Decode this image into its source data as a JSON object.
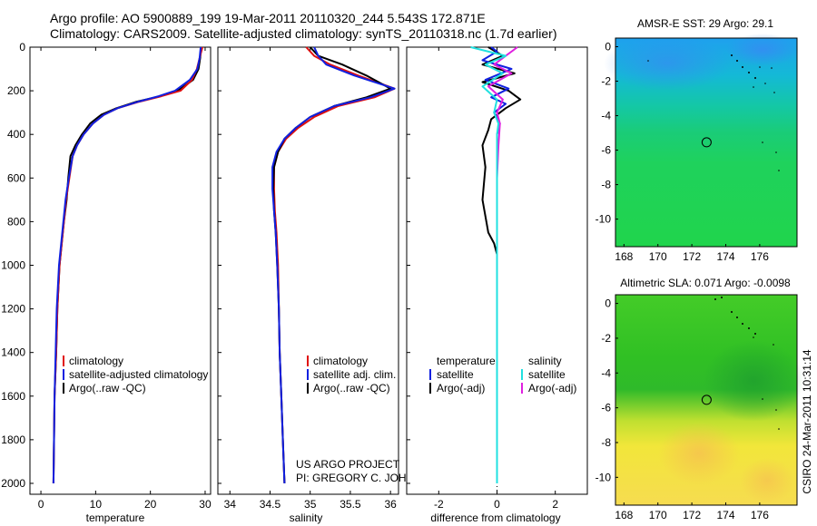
{
  "header": {
    "line1": "Argo profile: AO 5900889_199 19-Mar-2011 20110320_244 5.543S 172.871E",
    "line2": "Climatology: CARS2009. Satellite-adjusted climatology: synTS_20110318.nc (1.7d earlier)"
  },
  "credit": {
    "project": "US ARGO PROJECT",
    "pi": "PI: GREGORY C. JOHNSON",
    "stamp": "CSIRO 24-Mar-2011 10:31:14"
  },
  "colors": {
    "climatology": "#e01010",
    "satellite": "#1020e0",
    "argo": "#000000",
    "salinity_satellite": "#20e0e0",
    "salinity_argo": "#e020e0"
  },
  "chart_data": [
    {
      "type": "line",
      "title": "",
      "xlabel": "temperature",
      "ylabel": "",
      "xlim": [
        -2,
        31
      ],
      "ylim": [
        2050,
        0
      ],
      "xticks": [
        0,
        10,
        20,
        30
      ],
      "yticks": [
        0,
        200,
        400,
        600,
        800,
        1000,
        1200,
        1400,
        1600,
        1800,
        2000
      ],
      "legend": [
        "climatology",
        "satellite-adjusted climatology",
        "Argo(..raw -QC)"
      ],
      "series": [
        {
          "name": "climatology",
          "x": [
            29.5,
            29.0,
            28.5,
            27.6,
            25.5,
            22.0,
            18.0,
            14.0,
            11.5,
            9.5,
            7.8,
            6.6,
            5.8,
            5.2,
            4.6,
            4.2,
            3.8,
            3.4,
            3.0,
            2.8,
            2.5,
            2.4,
            2.3
          ],
          "y": [
            0,
            50,
            100,
            150,
            200,
            225,
            250,
            280,
            310,
            350,
            400,
            450,
            500,
            600,
            700,
            800,
            900,
            1000,
            1200,
            1400,
            1600,
            1800,
            2000
          ]
        },
        {
          "name": "satellite-adjusted climatology",
          "x": [
            29.2,
            29.0,
            28.6,
            27.2,
            24.5,
            21.5,
            17.8,
            14.0,
            11.5,
            9.5,
            7.8,
            6.6,
            5.8,
            5.1,
            4.5,
            4.1,
            3.7,
            3.3,
            2.9,
            2.7,
            2.5,
            2.4,
            2.3
          ],
          "y": [
            0,
            50,
            100,
            150,
            200,
            225,
            250,
            280,
            310,
            350,
            400,
            450,
            500,
            600,
            700,
            800,
            900,
            1000,
            1200,
            1400,
            1600,
            1800,
            2000
          ]
        },
        {
          "name": "Argo(..raw -QC)",
          "x": [
            29.3,
            29.1,
            28.8,
            27.8,
            25.0,
            21.8,
            17.5,
            13.8,
            11.0,
            9.0,
            7.5,
            6.3,
            5.4,
            5.0,
            4.7,
            4.2,
            3.8,
            3.4,
            3.0,
            2.8,
            2.5,
            2.4,
            2.3
          ],
          "y": [
            0,
            50,
            100,
            150,
            200,
            225,
            250,
            280,
            310,
            350,
            400,
            450,
            500,
            600,
            700,
            800,
            900,
            1000,
            1200,
            1400,
            1600,
            1800,
            2000
          ]
        }
      ]
    },
    {
      "type": "line",
      "title": "",
      "xlabel": "salinity",
      "ylabel": "",
      "xlim": [
        33.85,
        36.1
      ],
      "ylim": [
        2050,
        0
      ],
      "xticks": [
        34,
        34.5,
        35,
        35.5,
        36
      ],
      "legend": [
        "climatology",
        "satellite adj. clim.",
        "Argo(..raw -QC)"
      ],
      "series": [
        {
          "name": "climatology",
          "x": [
            34.95,
            35.05,
            35.25,
            35.6,
            36.05,
            35.8,
            35.35,
            35.05,
            34.85,
            34.7,
            34.6,
            34.55,
            34.55,
            34.56,
            34.58,
            34.6,
            34.61,
            34.62,
            34.64,
            34.66,
            34.67,
            34.68
          ],
          "y": [
            0,
            40,
            80,
            130,
            190,
            230,
            270,
            320,
            370,
            420,
            480,
            550,
            650,
            750,
            850,
            1000,
            1200,
            1400,
            1600,
            1800,
            1900,
            2000
          ]
        },
        {
          "name": "satellite adj. clim.",
          "x": [
            35.05,
            35.1,
            35.2,
            35.55,
            36.05,
            35.75,
            35.3,
            35.0,
            34.82,
            34.68,
            34.58,
            34.53,
            34.53,
            34.55,
            34.57,
            34.59,
            34.61,
            34.62,
            34.64,
            34.66,
            34.67,
            34.68
          ],
          "y": [
            0,
            40,
            80,
            130,
            190,
            230,
            270,
            320,
            370,
            420,
            480,
            550,
            650,
            750,
            850,
            1000,
            1200,
            1400,
            1600,
            1800,
            1900,
            2000
          ]
        },
        {
          "name": "Argo(..raw -QC)",
          "x": [
            35.0,
            35.1,
            35.4,
            35.7,
            36.0,
            35.7,
            35.3,
            35.0,
            34.82,
            34.68,
            34.6,
            34.55,
            34.54,
            34.55,
            34.57,
            34.59,
            34.61,
            34.62,
            34.64,
            34.66,
            34.67,
            34.68
          ],
          "y": [
            0,
            40,
            80,
            130,
            190,
            230,
            270,
            320,
            370,
            420,
            480,
            550,
            650,
            750,
            850,
            1000,
            1200,
            1400,
            1600,
            1800,
            1900,
            2000
          ]
        }
      ],
      "annotations": [
        "US ARGO PROJECT",
        "PI: GREGORY C. JOHNSON"
      ]
    },
    {
      "type": "line",
      "title": "",
      "xlabel": "difference from climatology",
      "ylabel": "",
      "xlim": [
        -3.1,
        3.1
      ],
      "ylim": [
        2050,
        0
      ],
      "xticks": [
        -2,
        0,
        2
      ],
      "legend": [
        "temperature satellite",
        "temperature Argo(-adj)",
        "salinity satellite",
        "salinity Argo(-adj)"
      ],
      "series": [
        {
          "name": "temperature satellite",
          "x": [
            -0.2,
            0.0,
            -0.5,
            0.5,
            -0.4,
            0.4,
            -0.2,
            0.3,
            -0.1,
            0.1,
            0.0,
            0.0,
            0.0,
            0.0,
            0.0,
            0.0,
            0.0,
            0.0,
            0.0,
            0.0
          ],
          "y": [
            0,
            20,
            60,
            100,
            150,
            190,
            230,
            260,
            300,
            350,
            400,
            500,
            600,
            800,
            1000,
            1200,
            1400,
            1600,
            1800,
            2000
          ]
        },
        {
          "name": "temperature Argo(-adj)",
          "x": [
            -0.3,
            0.2,
            -0.5,
            0.6,
            -0.5,
            0.4,
            0.8,
            0.3,
            -0.2,
            -0.3,
            -0.5,
            -0.4,
            -0.5,
            -0.3,
            -0.1,
            0.0,
            0.0,
            0.0,
            0.0,
            0.0
          ],
          "y": [
            0,
            40,
            80,
            120,
            160,
            200,
            240,
            280,
            330,
            380,
            450,
            550,
            700,
            850,
            900,
            950,
            1200,
            1500,
            1800,
            2000
          ]
        },
        {
          "name": "salinity satellite",
          "x": [
            -0.9,
            0.3,
            -0.4,
            0.2,
            -0.5,
            0.0,
            -0.1,
            0.05,
            0.0,
            0.0,
            0.0,
            0.0,
            0.0,
            0.0,
            0.0
          ],
          "y": [
            0,
            40,
            80,
            120,
            180,
            240,
            300,
            350,
            400,
            600,
            800,
            1000,
            1400,
            1800,
            2000
          ]
        },
        {
          "name": "salinity Argo(-adj)",
          "x": [
            0.7,
            0.3,
            -0.1,
            0.5,
            -0.3,
            0.2,
            0.0,
            0.1,
            0.05,
            0.0,
            0.0,
            0.0,
            0.0,
            0.0,
            0.0
          ],
          "y": [
            0,
            40,
            80,
            120,
            180,
            240,
            300,
            350,
            450,
            600,
            800,
            1000,
            1400,
            1800,
            2000
          ]
        }
      ]
    },
    {
      "type": "heatmap",
      "title": "AMSR-E SST: 29  Argo: 29.1",
      "xlabel": "",
      "ylabel": "",
      "xlim": [
        167.5,
        178.2
      ],
      "ylim": [
        0.5,
        -11.6
      ],
      "xticks": [
        168,
        170,
        172,
        174,
        176
      ],
      "yticks": [
        0,
        -2,
        -4,
        -6,
        -8,
        -10
      ],
      "marker": {
        "lon": 172.871,
        "lat": -5.543
      },
      "rows": [
        "0 to -3: cyan-blue",
        "-3 to -5: cyan-green",
        "-5 to -11.6: green"
      ]
    },
    {
      "type": "heatmap",
      "title": "Altimetric SLA: 0.071  Argo: -0.0098",
      "xlabel": "",
      "ylabel": "",
      "xlim": [
        167.5,
        178.2
      ],
      "ylim": [
        0.5,
        -11.6
      ],
      "xticks": [
        168,
        170,
        172,
        174,
        176
      ],
      "yticks": [
        0,
        -2,
        -4,
        -6,
        -8,
        -10
      ],
      "marker": {
        "lon": 172.871,
        "lat": -5.543
      },
      "rows": [
        "0 to -5.5: green",
        "-5.5 to -11.6: yellow-orange"
      ]
    }
  ]
}
